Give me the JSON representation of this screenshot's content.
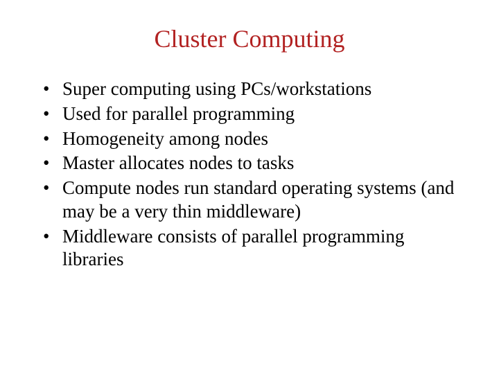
{
  "title": {
    "text": "Cluster Computing",
    "color": "#b22222",
    "fontsize": 36
  },
  "body": {
    "text_color": "#000000",
    "fontsize": 27,
    "bullet_char": "•"
  },
  "bullets": [
    {
      "text": "Super computing using PCs/workstations"
    },
    {
      "text": "Used for parallel programming"
    },
    {
      "text": "Homogeneity among nodes"
    },
    {
      "text": "Master allocates nodes to tasks"
    },
    {
      "text": "Compute nodes run standard operating systems (and may be a very thin middleware)"
    },
    {
      "text": "Middleware consists of parallel programming libraries"
    }
  ],
  "background_color": "#ffffff"
}
